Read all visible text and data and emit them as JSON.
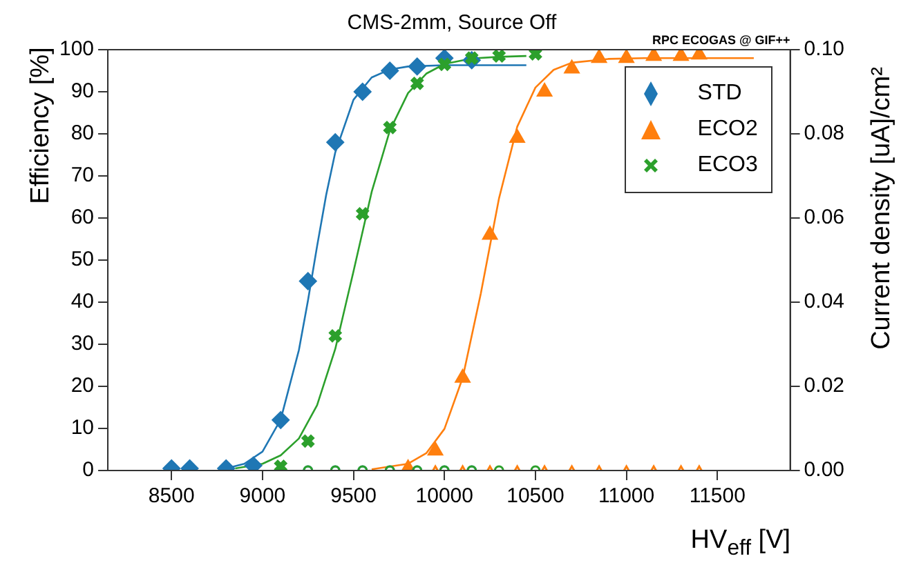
{
  "chart_data": {
    "type": "scatter",
    "title": "CMS-2mm, Source Off",
    "xlabel": "HV$_{eff}$ [V]",
    "ylabel": "Efficiency [%]",
    "y2label": "Current density [uA]/cm²",
    "annotations": [
      "RPC ECOGAS @ GIF++"
    ],
    "xlim": [
      8150,
      11900
    ],
    "xticks": [
      8500,
      9000,
      9500,
      10000,
      10500,
      11000,
      11500
    ],
    "ylim": [
      0,
      100
    ],
    "yticks": [
      0,
      10,
      20,
      30,
      40,
      50,
      60,
      70,
      80,
      90,
      100
    ],
    "y2lim": [
      0,
      0.1
    ],
    "y2ticks": [
      {
        "value": 0,
        "label": "0.00"
      },
      {
        "value": 0.02,
        "label": "0.02"
      },
      {
        "value": 0.04,
        "label": "0.04"
      },
      {
        "value": 0.06,
        "label": "0.06"
      },
      {
        "value": 0.08,
        "label": "0.08"
      },
      {
        "value": 0.1,
        "label": "0.10"
      }
    ],
    "grid": false,
    "legend": "top right",
    "series": [
      {
        "name": "STD",
        "color": "#1f77b4",
        "marker": "diamond",
        "x": [
          8500,
          8600,
          8800,
          8950,
          9100,
          9250,
          9400,
          9550,
          9700,
          9850,
          10000,
          10150
        ],
        "values": [
          0.5,
          0.5,
          0.5,
          1.2,
          12,
          45,
          78,
          90,
          95,
          96,
          98,
          97.5
        ]
      },
      {
        "name": "ECO2",
        "color": "#ff7f0e",
        "marker": "triangle",
        "x": [
          9800,
          9950,
          10100,
          10250,
          10400,
          10550,
          10700,
          10850,
          11000,
          11150,
          11300,
          11400
        ],
        "values": [
          0.5,
          4.7,
          22,
          56,
          79,
          90,
          95.5,
          98,
          98,
          98.5,
          98.5,
          98.8
        ]
      },
      {
        "name": "ECO3",
        "color": "#2ca02c",
        "marker": "cross",
        "x": [
          9100,
          9250,
          9400,
          9550,
          9700,
          9850,
          10000,
          10150,
          10300,
          10500
        ],
        "values": [
          1,
          7,
          32,
          61,
          81.5,
          92,
          96.5,
          98,
          98.5,
          99
        ]
      },
      {
        "type": "line",
        "color": "#1f77b4",
        "marker": "none",
        "x": [
          8800,
          8900,
          9000,
          9100,
          9200,
          9250,
          9300,
          9350,
          9400,
          9500,
          9600,
          9700,
          9800,
          10000,
          10450
        ],
        "values": [
          0.5,
          1.6,
          4.5,
          12.1,
          28.6,
          40.4,
          53.3,
          65.5,
          75.6,
          88.1,
          93.4,
          95.3,
          96,
          96.3,
          96.3
        ]
      },
      {
        "type": "line",
        "color": "#ff7f0e",
        "marker": "none",
        "x": [
          9600,
          9800,
          9900,
          10000,
          10100,
          10200,
          10300,
          10400,
          10500,
          10600,
          10700,
          10900,
          11100,
          11700
        ],
        "values": [
          0.3,
          1.6,
          4.1,
          9.9,
          22,
          42.1,
          64.7,
          81.7,
          91,
          95.2,
          96.9,
          97.8,
          98,
          98
        ]
      },
      {
        "type": "line",
        "color": "#2ca02c",
        "marker": "none",
        "x": [
          8850,
          9000,
          9100,
          9200,
          9300,
          9400,
          9500,
          9600,
          9700,
          9800,
          9900,
          10000,
          10150,
          10300,
          10450
        ],
        "values": [
          0.5,
          1.6,
          3.6,
          7.6,
          15.5,
          28.9,
          47.3,
          66.2,
          80.8,
          89.7,
          94.3,
          96.6,
          97.9,
          98.3,
          98.5
        ]
      },
      {
        "color": "#1f77b4",
        "marker": "circle",
        "axis": "y2",
        "x": [
          9250,
          9400,
          9550,
          9700,
          9850,
          10000,
          10150
        ],
        "values": [
          0,
          0,
          0,
          0,
          0,
          0,
          0
        ]
      },
      {
        "color": "#2ca02c",
        "marker": "circle",
        "axis": "y2",
        "x": [
          9250,
          9400,
          9550,
          9700,
          9850,
          10000,
          10150,
          10300,
          10500
        ],
        "values": [
          0,
          0,
          0,
          0,
          0,
          0,
          0,
          0,
          0
        ]
      },
      {
        "color": "#ff7f0e",
        "marker": "triangle",
        "axis": "y2",
        "x": [
          9950,
          10100,
          10250,
          10400,
          10550,
          10700,
          10850,
          11000,
          11150,
          11300,
          11400
        ],
        "values": [
          0,
          0,
          0,
          0,
          0,
          0,
          0,
          0,
          0,
          0,
          0
        ]
      }
    ]
  }
}
